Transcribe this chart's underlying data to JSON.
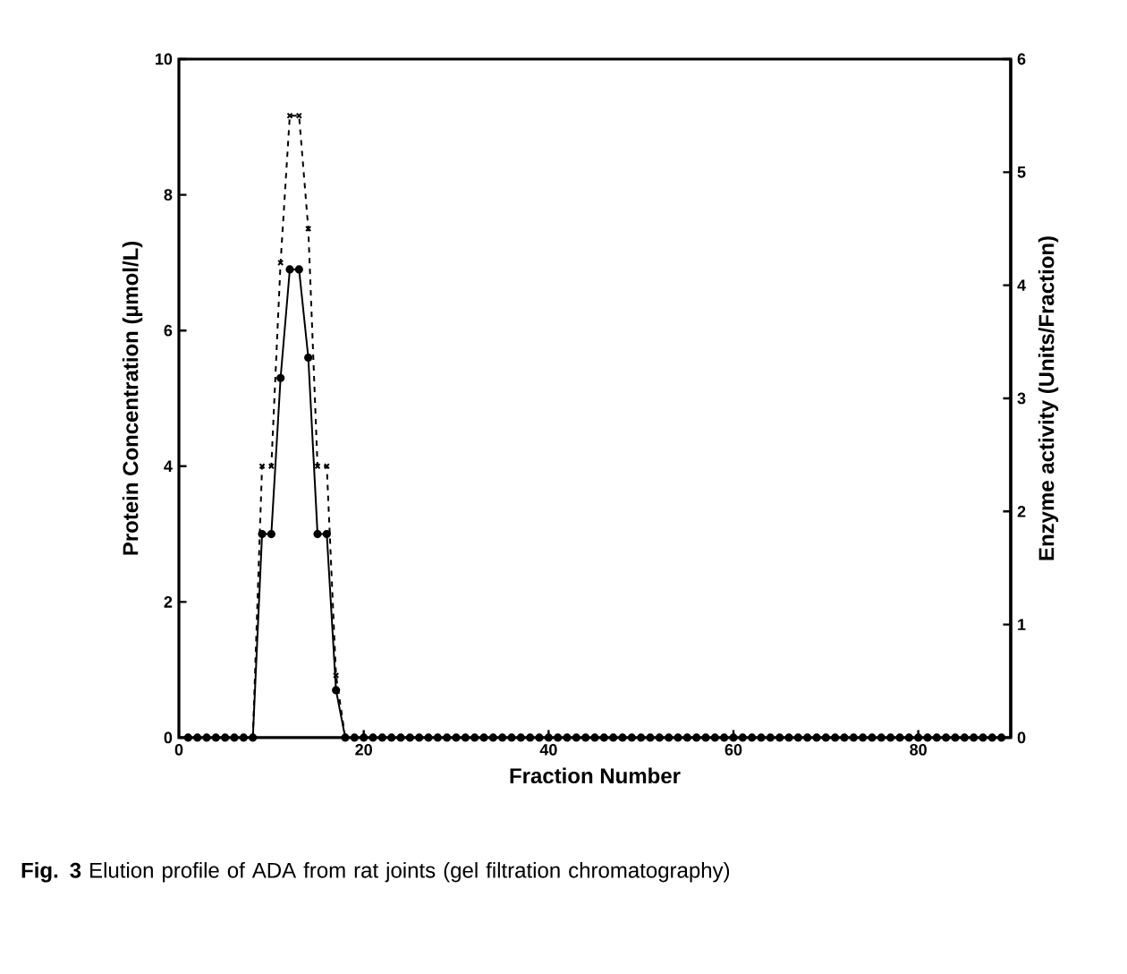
{
  "chart_data": {
    "type": "line",
    "xlabel": "Fraction Number",
    "ylabel": "Protein Concentration (µmol/L)",
    "y2label": "Enzyme activity (Units/Fraction)",
    "annotations": [
      "**Fig. 3**  Elution profile of ADA from rat joints (gel filtration chromatography)"
    ],
    "x": [
      1,
      2,
      3,
      4,
      5,
      6,
      7,
      8,
      9,
      10,
      11,
      12,
      13,
      14,
      15,
      16,
      17,
      18,
      19,
      20,
      21,
      22,
      23,
      24,
      25,
      26,
      27,
      28,
      29,
      30,
      31,
      32,
      33,
      34,
      35,
      36,
      37,
      38,
      39,
      40,
      41,
      42,
      43,
      44,
      45,
      46,
      47,
      48,
      49,
      50,
      51,
      52,
      53,
      54,
      55,
      56,
      57,
      58,
      59,
      60,
      61,
      62,
      63,
      64,
      65,
      66,
      67,
      68,
      69,
      70,
      71,
      72,
      73,
      74,
      75,
      76,
      77,
      78,
      79,
      80,
      81,
      82,
      83,
      84,
      85,
      86,
      87,
      88,
      89
    ],
    "series": [
      {
        "color": "#000000",
        "marker": "circle",
        "line_style": "solid",
        "values": [
          0,
          0,
          0,
          0,
          0,
          0,
          0,
          0,
          3.0,
          3.0,
          5.3,
          6.9,
          6.9,
          5.6,
          3.0,
          3.0,
          0.7,
          0,
          0,
          0,
          0,
          0,
          0,
          0,
          0,
          0,
          0,
          0,
          0,
          0,
          0,
          0,
          0,
          0,
          0,
          0,
          0,
          0,
          0,
          0,
          0,
          0,
          0,
          0,
          0,
          0,
          0,
          0,
          0,
          0,
          0,
          0,
          0,
          0,
          0,
          0,
          0,
          0,
          0,
          0,
          0,
          0,
          0,
          0,
          0,
          0,
          0,
          0,
          0,
          0,
          0,
          0,
          0,
          0,
          0,
          0,
          0,
          0,
          0,
          0,
          0,
          0,
          0,
          0,
          0,
          0,
          0,
          0,
          0
        ]
      },
      {
        "color": "#000000",
        "marker": "cross",
        "line_style": "dashed",
        "axis": "y2",
        "values": [
          0,
          0,
          0,
          0,
          0,
          0,
          0,
          0,
          2.4,
          2.4,
          4.2,
          5.5,
          5.5,
          4.5,
          2.4,
          2.4,
          0.55,
          0,
          0,
          0,
          0,
          0,
          0,
          0,
          0,
          0,
          0,
          0,
          0,
          0,
          0,
          0,
          0,
          0,
          0,
          0,
          0,
          0,
          0,
          0,
          0,
          0,
          0,
          0,
          0,
          0,
          0,
          0,
          0,
          0,
          0,
          0,
          0,
          0,
          0,
          0,
          0,
          0,
          0,
          0,
          0,
          0,
          0,
          0,
          0,
          0,
          0,
          0,
          0,
          0,
          0,
          0,
          0,
          0,
          0,
          0,
          0,
          0,
          0,
          0,
          0,
          0,
          0,
          0,
          0,
          0,
          0,
          0,
          0
        ]
      }
    ],
    "xlim": [
      0,
      90
    ],
    "xticks": [
      0,
      20,
      40,
      60,
      80
    ],
    "ylim": [
      0,
      10
    ],
    "yticks": [
      0,
      2,
      4,
      6,
      8,
      10
    ],
    "y2lim": [
      0,
      6
    ],
    "y2ticks": [
      0,
      1,
      2,
      3,
      4,
      5,
      6
    ]
  }
}
